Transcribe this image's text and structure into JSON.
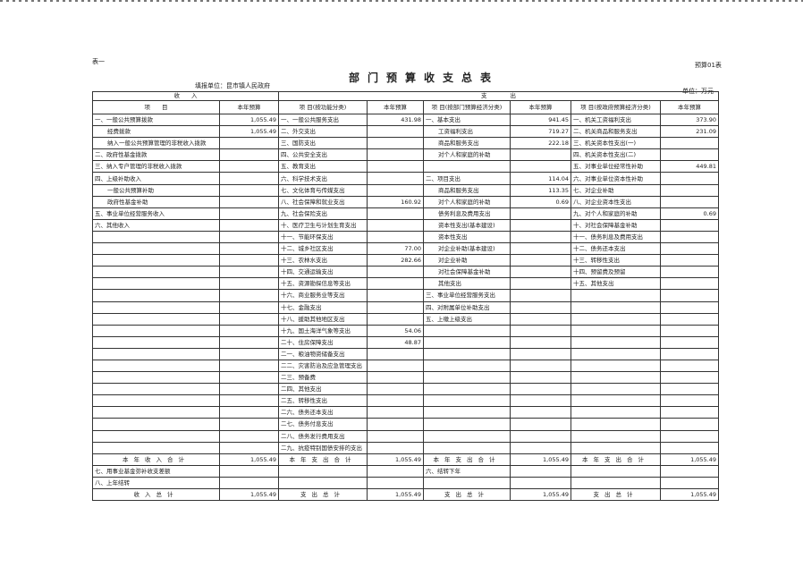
{
  "header": {
    "table_tag": "表一",
    "title": "部门预算收支总表",
    "form_no": "预算01表",
    "unit_label": "填报单位：昆市镇人民政府",
    "money_unit": "单位：万元"
  },
  "columns": {
    "income_group": "收　　入",
    "expense_group": "支　　　　出",
    "headers": [
      "项　　目",
      "本年预算",
      "项 目(按功能分类)",
      "本年预算",
      "项 目(按部门预算经济分类)",
      "本年预算",
      "项 目(按政府预算经济分类)",
      "本年预算"
    ]
  },
  "income": [
    {
      "label": "一、一般公共预算拨款",
      "value": "1,055.49"
    },
    {
      "label": "经费拨款",
      "value": "1,055.49",
      "indent": true
    },
    {
      "label": "纳入一般公共预算管理的非税收入拨款",
      "value": "",
      "indent": true
    },
    {
      "label": "二、政府性基金拨款",
      "value": ""
    },
    {
      "label": "三、纳入专户管理的非税收入拨款",
      "value": ""
    },
    {
      "label": "四、上级补助收入",
      "value": ""
    },
    {
      "label": "一般公共预算补助",
      "value": "",
      "indent": true
    },
    {
      "label": "政府性基金补助",
      "value": "",
      "indent": true
    },
    {
      "label": "五、事业单位经营服务收入",
      "value": ""
    },
    {
      "label": "六、其他收入",
      "value": ""
    }
  ],
  "functional": [
    {
      "label": "一、一般公共服务支出",
      "value": "431.98"
    },
    {
      "label": "二、外交支出",
      "value": ""
    },
    {
      "label": "三、国防支出",
      "value": ""
    },
    {
      "label": "四、公共安全支出",
      "value": ""
    },
    {
      "label": "五、教育支出",
      "value": ""
    },
    {
      "label": "六、科学技术支出",
      "value": ""
    },
    {
      "label": "七、文化体育与传媒支出",
      "value": ""
    },
    {
      "label": "八、社会保障和就业支出",
      "value": "160.92"
    },
    {
      "label": "九、社会保险支出",
      "value": ""
    },
    {
      "label": "十、医疗卫生与计划生育支出",
      "value": ""
    },
    {
      "label": "十一、节能环保支出",
      "value": ""
    },
    {
      "label": "十二、城乡社区支出",
      "value": "77.00"
    },
    {
      "label": "十三、农林水支出",
      "value": "282.66"
    },
    {
      "label": "十四、交通运输支出",
      "value": ""
    },
    {
      "label": "十五、资源勘探信息等支出",
      "value": ""
    },
    {
      "label": "十六、商业服务业等支出",
      "value": ""
    },
    {
      "label": "十七、金融支出",
      "value": ""
    },
    {
      "label": "十八、援助其他地区支出",
      "value": ""
    },
    {
      "label": "十九、国土海洋气象等支出",
      "value": "54.06"
    },
    {
      "label": "二十、住房保障支出",
      "value": "48.87"
    },
    {
      "label": "二一、粮油物资储备支出",
      "value": ""
    },
    {
      "label": "二二、灾害防治及应急管理支出",
      "value": ""
    },
    {
      "label": "二三、预备费",
      "value": ""
    },
    {
      "label": "二四、其他支出",
      "value": ""
    },
    {
      "label": "二五、转移性支出",
      "value": ""
    },
    {
      "label": "二六、债务还本支出",
      "value": ""
    },
    {
      "label": "二七、债务付息支出",
      "value": ""
    },
    {
      "label": "二八、债务发行费用支出",
      "value": ""
    },
    {
      "label": "二九、抗疫特别国债安排的支出",
      "value": ""
    }
  ],
  "departmental": [
    {
      "label": "一、基本支出",
      "value": "941.45"
    },
    {
      "label": "工资福利支出",
      "value": "719.27",
      "indent": true
    },
    {
      "label": "商品和服务支出",
      "value": "222.18",
      "indent": true
    },
    {
      "label": "对个人和家庭的补助",
      "value": "",
      "indent": true
    },
    {
      "label": "",
      "value": ""
    },
    {
      "label": "二、项目支出",
      "value": "114.04"
    },
    {
      "label": "商品和服务支出",
      "value": "113.35",
      "indent": true
    },
    {
      "label": "对个人和家庭的补助",
      "value": "0.69",
      "indent": true
    },
    {
      "label": "债务利息及费用支出",
      "value": "",
      "indent": true
    },
    {
      "label": "资本性支出(基本建设)",
      "value": "",
      "indent": true
    },
    {
      "label": "资本性支出",
      "value": "",
      "indent": true
    },
    {
      "label": "对企业补助(基本建设)",
      "value": "",
      "indent": true
    },
    {
      "label": "对企业补助",
      "value": "",
      "indent": true
    },
    {
      "label": "对社会保障基金补助",
      "value": "",
      "indent": true
    },
    {
      "label": "其他支出",
      "value": "",
      "indent": true
    },
    {
      "label": "三、事业单位经营服务支出",
      "value": ""
    },
    {
      "label": "四、对附属单位补助支出",
      "value": ""
    },
    {
      "label": "五、上缴上级支出",
      "value": ""
    }
  ],
  "government": [
    {
      "label": "一、机关工资福利支出",
      "value": "373.90"
    },
    {
      "label": "二、机关商品和服务支出",
      "value": "231.09"
    },
    {
      "label": "三、机关资本性支出(一)",
      "value": ""
    },
    {
      "label": "四、机关资本性支出(二)",
      "value": ""
    },
    {
      "label": "五、对事业单位经常性补助",
      "value": "449.81"
    },
    {
      "label": "六、对事业单位资本性补助",
      "value": ""
    },
    {
      "label": "七、对企业补助",
      "value": ""
    },
    {
      "label": "八、对企业资本性支出",
      "value": ""
    },
    {
      "label": "九、对个人和家庭的补助",
      "value": "0.69"
    },
    {
      "label": "十、对社会保障基金补助",
      "value": ""
    },
    {
      "label": "十一、债务利息及费用支出",
      "value": ""
    },
    {
      "label": "十二、债务还本支出",
      "value": ""
    },
    {
      "label": "十三、转移性支出",
      "value": ""
    },
    {
      "label": "十四、预留费及预留",
      "value": ""
    },
    {
      "label": "十五、其他支出",
      "value": ""
    }
  ],
  "footer": [
    {
      "cells": [
        {
          "label": "本年收入合计",
          "center": true
        },
        {
          "value": "1,055.49"
        },
        {
          "label": "本年支出合计",
          "center": true
        },
        {
          "value": "1,055.49"
        },
        {
          "label": "本年支出合计",
          "center": true
        },
        {
          "value": "1,055.49"
        },
        {
          "label": "本年支出合计",
          "center": true
        },
        {
          "value": "1,055.49"
        }
      ]
    },
    {
      "cells": [
        {
          "label": "七、用事业基金弥补收支差额"
        },
        {
          "value": ""
        },
        {
          "label": ""
        },
        {
          "value": ""
        },
        {
          "label": "六、结转下年"
        },
        {
          "value": ""
        },
        {
          "label": ""
        },
        {
          "value": ""
        }
      ]
    },
    {
      "cells": [
        {
          "label": "八、上年结转"
        },
        {
          "value": ""
        },
        {
          "label": ""
        },
        {
          "value": ""
        },
        {
          "label": ""
        },
        {
          "value": ""
        },
        {
          "label": ""
        },
        {
          "value": ""
        }
      ]
    },
    {
      "cells": [
        {
          "label": "收入总计",
          "center": true
        },
        {
          "value": "1,055.49"
        },
        {
          "label": "支出总计",
          "center": true
        },
        {
          "value": "1,055.49"
        },
        {
          "label": "支出总计",
          "center": true
        },
        {
          "value": "1,055.49"
        },
        {
          "label": "支出总计",
          "center": true
        },
        {
          "value": "1,055.49"
        }
      ]
    }
  ]
}
